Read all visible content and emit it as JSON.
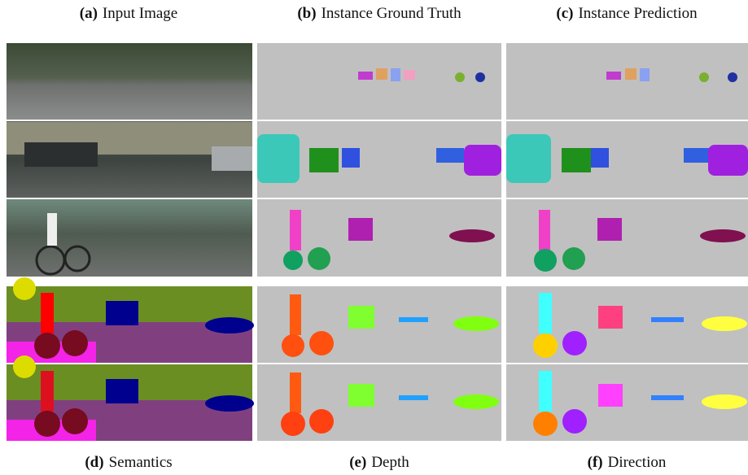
{
  "top_captions": [
    {
      "label": "(a)",
      "text": "Input Image"
    },
    {
      "label": "(b)",
      "text": "Instance Ground Truth"
    },
    {
      "label": "(c)",
      "text": "Instance Prediction"
    }
  ],
  "bottom_captions": [
    {
      "label": "(d)",
      "text": "Semantics"
    },
    {
      "label": "(e)",
      "text": "Depth"
    },
    {
      "label": "(f)",
      "text": "Direction"
    }
  ]
}
